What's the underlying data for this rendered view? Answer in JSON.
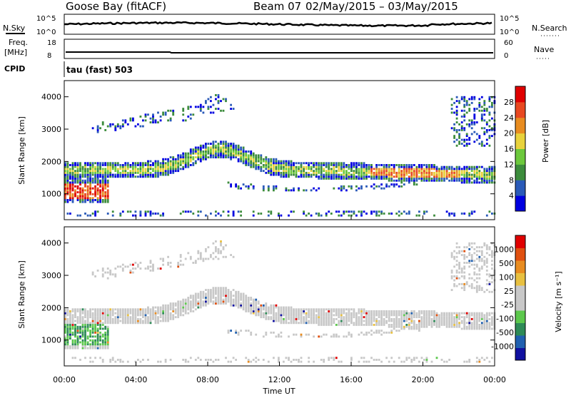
{
  "header": {
    "radar": "Goose Bay (fitACF)",
    "beam": "Beam 07",
    "date_range": "02/May/2015 – 03/May/2015"
  },
  "top_panels": {
    "left_labels": {
      "nsky": "N.Sky",
      "freq": "Freq.",
      "freq_unit": "[MHz]",
      "cpid": "CPID"
    },
    "right_labels": {
      "nsearch": "N.Search",
      "nave": "Nave"
    },
    "noise_ticks_left": [
      "10^5",
      "10^0"
    ],
    "noise_ticks_right": [
      "10^5",
      "10^0"
    ],
    "freq_ticks": [
      "18",
      "8"
    ],
    "nave_ticks": [
      "60",
      "0"
    ],
    "cpid_text": "tau (fast) 503"
  },
  "chart_data": [
    {
      "type": "heatmap",
      "name": "power",
      "ylabel": "Slant Range [km]",
      "ylim": [
        200,
        4500
      ],
      "yticks": [
        "1000",
        "2000",
        "3000",
        "4000"
      ],
      "colorbar_label": "Power [dB]",
      "colorbar_ticks": [
        "4",
        "8",
        "12",
        "16",
        "20",
        "24",
        "28"
      ],
      "colors": [
        "#0000e0",
        "#2a5ab8",
        "#3c8c3c",
        "#6cc83c",
        "#e8d23c",
        "#e88c20",
        "#e84820",
        "#e00000"
      ]
    },
    {
      "type": "heatmap",
      "name": "velocity",
      "xlabel": "Time UT",
      "xticks": [
        "00:00",
        "04:00",
        "08:00",
        "12:00",
        "16:00",
        "20:00",
        "00:00"
      ],
      "ylabel": "Slant Range [km]",
      "ylim": [
        200,
        4500
      ],
      "yticks": [
        "1000",
        "2000",
        "3000",
        "4000"
      ],
      "colorbar_label": "Velocity [m s⁻¹]",
      "colorbar_ticks": [
        "1000",
        "500",
        "100",
        "25",
        "-25",
        "-100",
        "-500",
        "-1000"
      ],
      "colors": [
        "#1010a0",
        "#2060b0",
        "#2e8b57",
        "#5cc84c",
        "#c8c8c8",
        "#c8c8c8",
        "#e8c040",
        "#e88c20",
        "#e05010",
        "#e00000"
      ]
    }
  ]
}
